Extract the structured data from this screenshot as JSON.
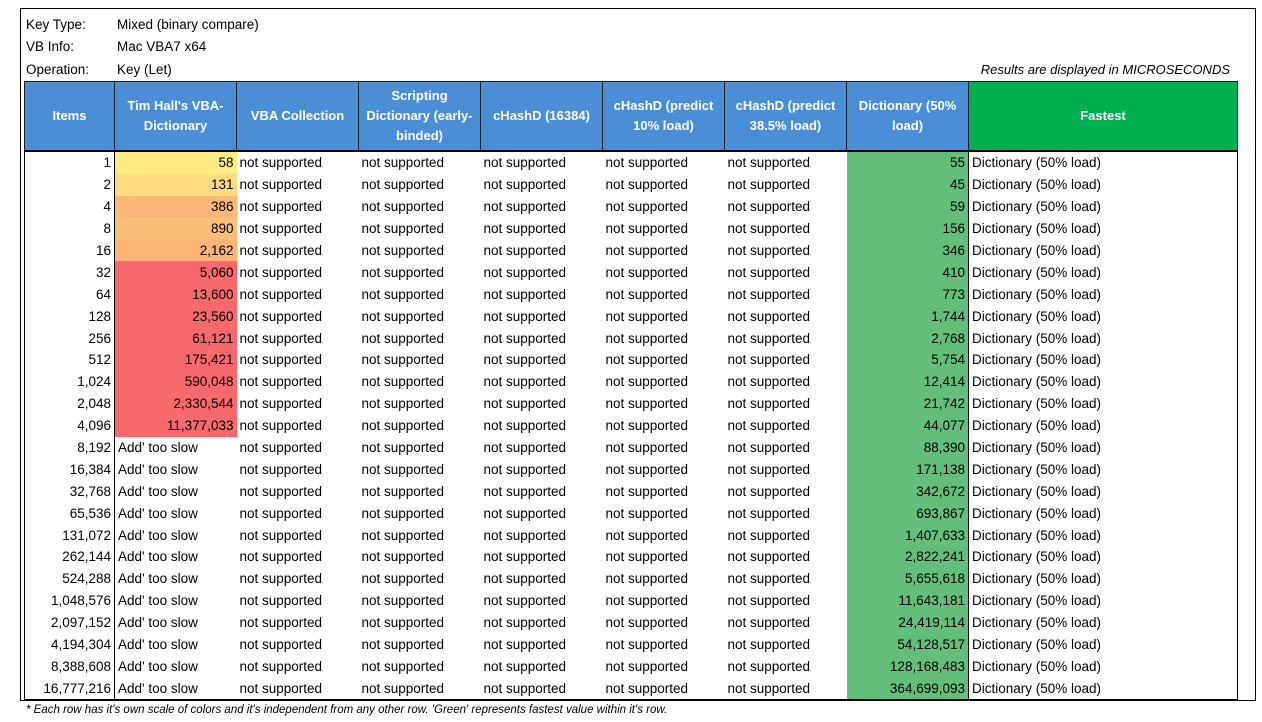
{
  "meta": {
    "key_type_label": "Key Type:",
    "key_type_value": "Mixed (binary compare)",
    "vb_info_label": "VB Info:",
    "vb_info_value": "Mac VBA7 x64",
    "operation_label": "Operation:",
    "operation_value": "Key (Let)",
    "units_note": "Results are displayed in MICROSECONDS"
  },
  "colors": {
    "header_blue": "#4a8fd6",
    "header_green": "#00b050",
    "dictionary_green": "#63be7b",
    "scale_yellow": "#ffeb84",
    "scale_red": "#f8696b"
  },
  "columns": [
    "Items",
    "Tim Hall's VBA-Dictionary",
    "VBA Collection",
    "Scripting Dictionary (early-binded)",
    "cHashD (16384)",
    "cHashD (predict 10% load)",
    "cHashD (predict 38.5% load)",
    "Dictionary (50% load)",
    "Fastest"
  ],
  "rows": [
    {
      "items": "1",
      "timhall": "58",
      "collection": "not supported",
      "scripting": "not supported",
      "chash16384": "not supported",
      "chash10": "not supported",
      "chash385": "not supported",
      "dict50": "55",
      "fastest": "Dictionary (50% load)",
      "timhall_bg": "#ffeb84"
    },
    {
      "items": "2",
      "timhall": "131",
      "collection": "not supported",
      "scripting": "not supported",
      "chash16384": "not supported",
      "chash10": "not supported",
      "chash385": "not supported",
      "dict50": "45",
      "fastest": "Dictionary (50% load)",
      "timhall_bg": "#fedb80"
    },
    {
      "items": "4",
      "timhall": "386",
      "collection": "not supported",
      "scripting": "not supported",
      "chash16384": "not supported",
      "chash10": "not supported",
      "chash385": "not supported",
      "dict50": "59",
      "fastest": "Dictionary (50% load)",
      "timhall_bg": "#fcb77a"
    },
    {
      "items": "8",
      "timhall": "890",
      "collection": "not supported",
      "scripting": "not supported",
      "chash16384": "not supported",
      "chash10": "not supported",
      "chash385": "not supported",
      "dict50": "156",
      "fastest": "Dictionary (50% load)",
      "timhall_bg": "#fcbf7b"
    },
    {
      "items": "16",
      "timhall": "2,162",
      "collection": "not supported",
      "scripting": "not supported",
      "chash16384": "not supported",
      "chash10": "not supported",
      "chash385": "not supported",
      "dict50": "346",
      "fastest": "Dictionary (50% load)",
      "timhall_bg": "#fcb479"
    },
    {
      "items": "32",
      "timhall": "5,060",
      "collection": "not supported",
      "scripting": "not supported",
      "chash16384": "not supported",
      "chash10": "not supported",
      "chash385": "not supported",
      "dict50": "410",
      "fastest": "Dictionary (50% load)",
      "timhall_bg": "#f8696b"
    },
    {
      "items": "64",
      "timhall": "13,600",
      "collection": "not supported",
      "scripting": "not supported",
      "chash16384": "not supported",
      "chash10": "not supported",
      "chash385": "not supported",
      "dict50": "773",
      "fastest": "Dictionary (50% load)",
      "timhall_bg": "#f8696b"
    },
    {
      "items": "128",
      "timhall": "23,560",
      "collection": "not supported",
      "scripting": "not supported",
      "chash16384": "not supported",
      "chash10": "not supported",
      "chash385": "not supported",
      "dict50": "1,744",
      "fastest": "Dictionary (50% load)",
      "timhall_bg": "#f8696b"
    },
    {
      "items": "256",
      "timhall": "61,121",
      "collection": "not supported",
      "scripting": "not supported",
      "chash16384": "not supported",
      "chash10": "not supported",
      "chash385": "not supported",
      "dict50": "2,768",
      "fastest": "Dictionary (50% load)",
      "timhall_bg": "#f8696b"
    },
    {
      "items": "512",
      "timhall": "175,421",
      "collection": "not supported",
      "scripting": "not supported",
      "chash16384": "not supported",
      "chash10": "not supported",
      "chash385": "not supported",
      "dict50": "5,754",
      "fastest": "Dictionary (50% load)",
      "timhall_bg": "#f8696b"
    },
    {
      "items": "1,024",
      "timhall": "590,048",
      "collection": "not supported",
      "scripting": "not supported",
      "chash16384": "not supported",
      "chash10": "not supported",
      "chash385": "not supported",
      "dict50": "12,414",
      "fastest": "Dictionary (50% load)",
      "timhall_bg": "#f8696b"
    },
    {
      "items": "2,048",
      "timhall": "2,330,544",
      "collection": "not supported",
      "scripting": "not supported",
      "chash16384": "not supported",
      "chash10": "not supported",
      "chash385": "not supported",
      "dict50": "21,742",
      "fastest": "Dictionary (50% load)",
      "timhall_bg": "#f8696b"
    },
    {
      "items": "4,096",
      "timhall": "11,377,033",
      "collection": "not supported",
      "scripting": "not supported",
      "chash16384": "not supported",
      "chash10": "not supported",
      "chash385": "not supported",
      "dict50": "44,077",
      "fastest": "Dictionary (50% load)",
      "timhall_bg": "#f8696b"
    },
    {
      "items": "8,192",
      "timhall": "Add' too slow",
      "collection": "not supported",
      "scripting": "not supported",
      "chash16384": "not supported",
      "chash10": "not supported",
      "chash385": "not supported",
      "dict50": "88,390",
      "fastest": "Dictionary (50% load)",
      "timhall_bg": ""
    },
    {
      "items": "16,384",
      "timhall": "Add' too slow",
      "collection": "not supported",
      "scripting": "not supported",
      "chash16384": "not supported",
      "chash10": "not supported",
      "chash385": "not supported",
      "dict50": "171,138",
      "fastest": "Dictionary (50% load)",
      "timhall_bg": ""
    },
    {
      "items": "32,768",
      "timhall": "Add' too slow",
      "collection": "not supported",
      "scripting": "not supported",
      "chash16384": "not supported",
      "chash10": "not supported",
      "chash385": "not supported",
      "dict50": "342,672",
      "fastest": "Dictionary (50% load)",
      "timhall_bg": ""
    },
    {
      "items": "65,536",
      "timhall": "Add' too slow",
      "collection": "not supported",
      "scripting": "not supported",
      "chash16384": "not supported",
      "chash10": "not supported",
      "chash385": "not supported",
      "dict50": "693,867",
      "fastest": "Dictionary (50% load)",
      "timhall_bg": ""
    },
    {
      "items": "131,072",
      "timhall": "Add' too slow",
      "collection": "not supported",
      "scripting": "not supported",
      "chash16384": "not supported",
      "chash10": "not supported",
      "chash385": "not supported",
      "dict50": "1,407,633",
      "fastest": "Dictionary (50% load)",
      "timhall_bg": ""
    },
    {
      "items": "262,144",
      "timhall": "Add' too slow",
      "collection": "not supported",
      "scripting": "not supported",
      "chash16384": "not supported",
      "chash10": "not supported",
      "chash385": "not supported",
      "dict50": "2,822,241",
      "fastest": "Dictionary (50% load)",
      "timhall_bg": ""
    },
    {
      "items": "524,288",
      "timhall": "Add' too slow",
      "collection": "not supported",
      "scripting": "not supported",
      "chash16384": "not supported",
      "chash10": "not supported",
      "chash385": "not supported",
      "dict50": "5,655,618",
      "fastest": "Dictionary (50% load)",
      "timhall_bg": ""
    },
    {
      "items": "1,048,576",
      "timhall": "Add' too slow",
      "collection": "not supported",
      "scripting": "not supported",
      "chash16384": "not supported",
      "chash10": "not supported",
      "chash385": "not supported",
      "dict50": "11,643,181",
      "fastest": "Dictionary (50% load)",
      "timhall_bg": ""
    },
    {
      "items": "2,097,152",
      "timhall": "Add' too slow",
      "collection": "not supported",
      "scripting": "not supported",
      "chash16384": "not supported",
      "chash10": "not supported",
      "chash385": "not supported",
      "dict50": "24,419,114",
      "fastest": "Dictionary (50% load)",
      "timhall_bg": ""
    },
    {
      "items": "4,194,304",
      "timhall": "Add' too slow",
      "collection": "not supported",
      "scripting": "not supported",
      "chash16384": "not supported",
      "chash10": "not supported",
      "chash385": "not supported",
      "dict50": "54,128,517",
      "fastest": "Dictionary (50% load)",
      "timhall_bg": ""
    },
    {
      "items": "8,388,608",
      "timhall": "Add' too slow",
      "collection": "not supported",
      "scripting": "not supported",
      "chash16384": "not supported",
      "chash10": "not supported",
      "chash385": "not supported",
      "dict50": "128,168,483",
      "fastest": "Dictionary (50% load)",
      "timhall_bg": ""
    },
    {
      "items": "16,777,216",
      "timhall": "Add' too slow",
      "collection": "not supported",
      "scripting": "not supported",
      "chash16384": "not supported",
      "chash10": "not supported",
      "chash385": "not supported",
      "dict50": "364,699,093",
      "fastest": "Dictionary (50% load)",
      "timhall_bg": ""
    }
  ],
  "footnote": "* Each row has it's own scale of colors and it's independent from any other row. 'Green' represents fastest value within it's row."
}
